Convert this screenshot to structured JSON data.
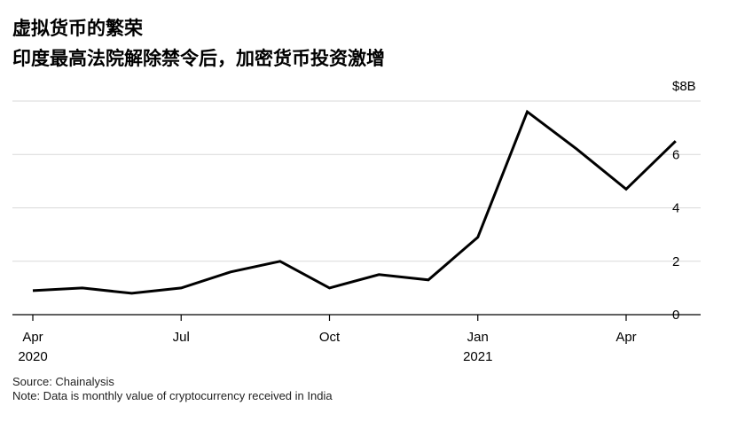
{
  "header": {
    "title": "虚拟货币的繁荣",
    "subtitle": "印度最高法院解除禁令后，加密货币投资激增"
  },
  "footer": {
    "source": "Source: Chainalysis",
    "note": "Note: Data is monthly value of cryptocurrency received in India"
  },
  "chart_data": {
    "type": "line",
    "title": "虚拟货币的繁荣",
    "subtitle": "印度最高法院解除禁令后，加密货币投资激增",
    "x": [
      "2020-04",
      "2020-05",
      "2020-06",
      "2020-07",
      "2020-08",
      "2020-09",
      "2020-10",
      "2020-11",
      "2020-12",
      "2021-01",
      "2021-02",
      "2021-03",
      "2021-04",
      "2021-05"
    ],
    "series": [
      {
        "values": [
          0.9,
          1.0,
          0.8,
          1.0,
          1.6,
          2.0,
          1.0,
          1.5,
          1.3,
          2.9,
          7.6,
          6.2,
          4.7,
          6.5
        ]
      }
    ],
    "ylim": [
      0,
      8
    ],
    "yticks": [
      {
        "value": 0,
        "label": "0"
      },
      {
        "value": 2,
        "label": "2"
      },
      {
        "value": 4,
        "label": "4"
      },
      {
        "value": 6,
        "label": "6"
      },
      {
        "value": 8,
        "label": "$8B"
      }
    ],
    "xticks": [
      {
        "x": "2020-04",
        "label": "Apr",
        "year": "2020"
      },
      {
        "x": "2020-07",
        "label": "Jul",
        "year": ""
      },
      {
        "x": "2020-10",
        "label": "Oct",
        "year": ""
      },
      {
        "x": "2021-01",
        "label": "Jan",
        "year": "2021"
      },
      {
        "x": "2021-04",
        "label": "Apr",
        "year": ""
      }
    ],
    "grid": true,
    "colors": {
      "line": "#000000",
      "grid": "#d9d9d9",
      "axis": "#000000"
    }
  }
}
